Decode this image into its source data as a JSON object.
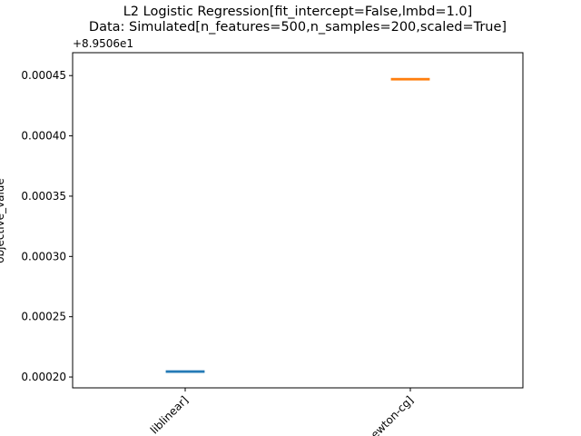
{
  "chart_data": {
    "type": "box",
    "title_lines": [
      "L2 Logistic Regression[fit_intercept=False,lmbd=1.0]",
      "Data: Simulated[n_features=500,n_samples=200,scaled=True]"
    ],
    "ylabel": "objective_value",
    "y_offset_label": "+8.9506e1",
    "y_offset": 89.506,
    "ylim": [
      0.000191,
      0.000469
    ],
    "yticks": [
      0.0002,
      0.00025,
      0.0003,
      0.00035,
      0.0004,
      0.00045
    ],
    "ytick_labels": [
      "0.00020",
      "0.00025",
      "0.00030",
      "0.00035",
      "0.00040",
      "0.00045"
    ],
    "categories": [
      "liblinear]",
      "newton-cg]"
    ],
    "series": [
      {
        "values": [
          0.0002045
        ],
        "color": "#1f77b4"
      },
      {
        "values": [
          0.000447
        ],
        "color": "#ff7f0e"
      }
    ]
  }
}
